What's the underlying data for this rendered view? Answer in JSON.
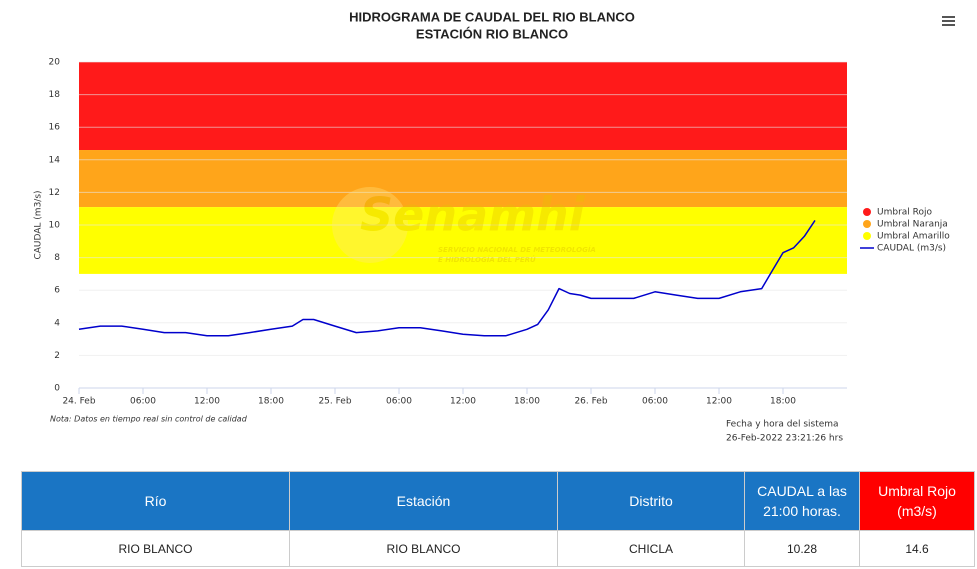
{
  "chart_data": {
    "type": "line",
    "title": "HIDROGRAMA DE CAUDAL DEL RIO BLANCO",
    "subtitle": "ESTACIÓN RIO BLANCO",
    "y_label": "CAUDAL (m3/s)",
    "watermark": "Senamhi",
    "watermark_sub": [
      "SERVICIO NACIONAL DE METEOROLOGÍA",
      "E HIDROLOGÍA DEL PERÚ"
    ],
    "note": "Nota: Datos en tiempo real sin control de calidad",
    "system_time_label": "Fecha y hora del sistema",
    "system_time": "26-Feb-2022 23:21:26 hrs",
    "ylim": [
      0,
      20
    ],
    "yticks": [
      0,
      2,
      4,
      6,
      8,
      10,
      12,
      14,
      16,
      18,
      20
    ],
    "xlim": [
      "2022-02-24T00:00",
      "2022-02-27T00:00"
    ],
    "xticks": [
      {
        "value": "2022-02-24T00:00",
        "label": "24. Feb"
      },
      {
        "value": "2022-02-24T06:00",
        "label": "06:00"
      },
      {
        "value": "2022-02-24T12:00",
        "label": "12:00"
      },
      {
        "value": "2022-02-24T18:00",
        "label": "18:00"
      },
      {
        "value": "2022-02-25T00:00",
        "label": "25. Feb"
      },
      {
        "value": "2022-02-25T06:00",
        "label": "06:00"
      },
      {
        "value": "2022-02-25T12:00",
        "label": "12:00"
      },
      {
        "value": "2022-02-25T18:00",
        "label": "18:00"
      },
      {
        "value": "2022-02-26T00:00",
        "label": "26. Feb"
      },
      {
        "value": "2022-02-26T06:00",
        "label": "06:00"
      },
      {
        "value": "2022-02-26T12:00",
        "label": "12:00"
      },
      {
        "value": "2022-02-26T18:00",
        "label": "18:00"
      }
    ],
    "grid": true,
    "bands": [
      {
        "name": "Umbral Rojo",
        "color": "#ff1a1a",
        "from": 14.6,
        "to": 20
      },
      {
        "name": "Umbral Naranja",
        "color": "#ffa51a",
        "from": 11.1,
        "to": 14.6
      },
      {
        "name": "Umbral Amarillo",
        "color": "#ffff00",
        "from": 7,
        "to": 11.1
      }
    ],
    "series": [
      {
        "name": "CAUDAL (m3/s)",
        "color": "#0000cc",
        "x": [
          "2022-02-24T00:00",
          "2022-02-24T02:00",
          "2022-02-24T04:00",
          "2022-02-24T06:00",
          "2022-02-24T08:00",
          "2022-02-24T10:00",
          "2022-02-24T12:00",
          "2022-02-24T14:00",
          "2022-02-24T16:00",
          "2022-02-24T18:00",
          "2022-02-24T20:00",
          "2022-02-24T21:00",
          "2022-02-24T22:00",
          "2022-02-25T00:00",
          "2022-02-25T02:00",
          "2022-02-25T04:00",
          "2022-02-25T06:00",
          "2022-02-25T08:00",
          "2022-02-25T10:00",
          "2022-02-25T12:00",
          "2022-02-25T14:00",
          "2022-02-25T16:00",
          "2022-02-25T18:00",
          "2022-02-25T19:00",
          "2022-02-25T20:00",
          "2022-02-25T21:00",
          "2022-02-25T22:00",
          "2022-02-25T23:00",
          "2022-02-26T00:00",
          "2022-02-26T02:00",
          "2022-02-26T04:00",
          "2022-02-26T06:00",
          "2022-02-26T08:00",
          "2022-02-26T10:00",
          "2022-02-26T12:00",
          "2022-02-26T14:00",
          "2022-02-26T16:00",
          "2022-02-26T17:00",
          "2022-02-26T18:00",
          "2022-02-26T19:00",
          "2022-02-26T20:00",
          "2022-02-26T21:00"
        ],
        "values": [
          3.6,
          3.8,
          3.8,
          3.6,
          3.4,
          3.4,
          3.2,
          3.2,
          3.4,
          3.6,
          3.8,
          4.2,
          4.2,
          3.8,
          3.4,
          3.5,
          3.7,
          3.7,
          3.5,
          3.3,
          3.2,
          3.2,
          3.6,
          3.9,
          4.8,
          6.1,
          5.8,
          5.7,
          5.5,
          5.5,
          5.5,
          5.9,
          5.7,
          5.5,
          5.5,
          5.9,
          6.1,
          7.2,
          8.3,
          8.6,
          9.3,
          10.28
        ]
      }
    ]
  },
  "table": {
    "headers": [
      "Río",
      "Estación",
      "Distrito",
      "CAUDAL a las 21:00 horas.",
      "Umbral Rojo (m3/s)"
    ],
    "rows": [
      [
        "RIO BLANCO",
        "RIO BLANCO",
        "CHICLA",
        "10.28",
        "14.6"
      ]
    ]
  }
}
